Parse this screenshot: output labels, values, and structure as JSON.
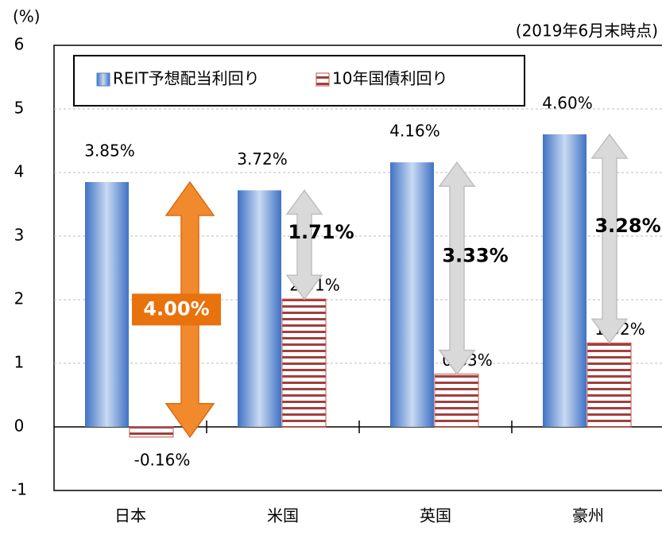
{
  "chart_data": {
    "type": "bar",
    "y_label": "(%)",
    "note": "(2019年6月末時点)",
    "categories": [
      "日本",
      "米国",
      "英国",
      "豪州"
    ],
    "series": [
      {
        "name": "REIT予想配当利回り",
        "color": "#4f81bd",
        "values": [
          3.85,
          3.72,
          4.16,
          4.6
        ],
        "value_labels": [
          "3.85%",
          "3.72%",
          "4.16%",
          "4.60%"
        ]
      },
      {
        "name": "10年国債利回り",
        "color": "#c0504d",
        "values": [
          -0.16,
          2.01,
          0.83,
          1.32
        ],
        "value_labels": [
          "-0.16%",
          "2.01%",
          "0.83%",
          "1.32%"
        ]
      }
    ],
    "spreads": {
      "values": [
        4.0,
        1.71,
        3.33,
        3.28
      ],
      "value_labels": [
        "4.00%",
        "1.71%",
        "3.33%",
        "3.28%"
      ],
      "colors": [
        "#f08a2c",
        "#d9d9d9",
        "#d9d9d9",
        "#d9d9d9"
      ]
    },
    "ylim": [
      -1,
      6
    ],
    "yticks": [
      -1,
      0,
      1,
      2,
      3,
      4,
      5,
      6
    ],
    "grid": true
  }
}
